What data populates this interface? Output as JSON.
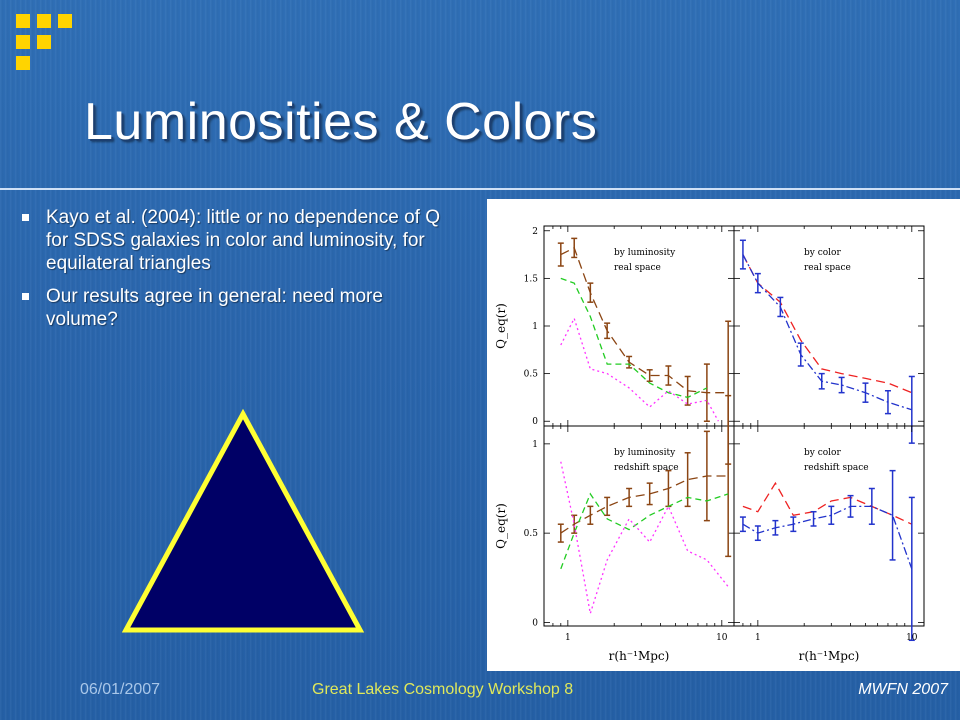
{
  "slide": {
    "title": "Luminosities & Colors",
    "bullets": [
      "Kayo et al. (2004): little or no dependence of Q for SDSS galaxies in color and luminosity, for equilateral triangles",
      "Our results agree in general: need more volume?"
    ],
    "footer": {
      "date": "06/01/2007",
      "event": "Great Lakes Cosmology Workshop 8",
      "author": "MWFN 2007"
    },
    "colors": {
      "background": "#2b68ae",
      "logo": "#ffd400",
      "triangle_fill": "#000066",
      "triangle_stroke": "#ffff33"
    }
  },
  "figure": {
    "ylabel": "Q_eq(r)",
    "xlabel": "r(h⁻¹Mpc)",
    "x_ticks": [
      "1",
      "10"
    ],
    "panels": [
      {
        "label1": "by luminosity",
        "label2": "real space",
        "y_ticks": [
          "0",
          "0.5",
          "1",
          "1.5",
          "2"
        ]
      },
      {
        "label1": "by color",
        "label2": "real space"
      },
      {
        "label1": "by luminosity",
        "label2": "redshift space",
        "y_ticks": [
          "0",
          "0.5",
          "1"
        ]
      },
      {
        "label1": "by color",
        "label2": "redshift space"
      }
    ]
  },
  "chart_data": [
    {
      "type": "line",
      "panel": "by luminosity / real space",
      "xscale": "log",
      "xlim": [
        0.7,
        12
      ],
      "ylim": [
        -0.05,
        2.05
      ],
      "series": [
        {
          "color": "#8b4513",
          "style": "long-dash with error bars",
          "x": [
            0.9,
            1.1,
            1.4,
            1.8,
            2.5,
            3.4,
            4.5,
            6.0,
            8.0,
            11.0
          ],
          "y": [
            1.75,
            1.82,
            1.35,
            0.95,
            0.62,
            0.48,
            0.48,
            0.32,
            0.3,
            0.3
          ],
          "err": [
            0.12,
            0.1,
            0.1,
            0.08,
            0.06,
            0.06,
            0.1,
            0.15,
            0.3,
            0.75
          ]
        },
        {
          "color": "#22cc22",
          "style": "dashed",
          "x": [
            0.9,
            1.1,
            1.4,
            1.8,
            2.5,
            3.4,
            4.5,
            6.0,
            8.0
          ],
          "y": [
            1.5,
            1.45,
            1.1,
            0.6,
            0.6,
            0.4,
            0.3,
            0.25,
            0.35
          ]
        },
        {
          "color": "#ff33ff",
          "style": "dotted",
          "x": [
            0.9,
            1.1,
            1.4,
            1.8,
            2.5,
            3.4,
            4.5,
            6.0,
            8.0,
            9.5
          ],
          "y": [
            0.8,
            1.08,
            0.55,
            0.5,
            0.35,
            0.15,
            0.32,
            0.18,
            0.22,
            0.0
          ]
        }
      ]
    },
    {
      "type": "line",
      "panel": "by color / real space",
      "xscale": "log",
      "xlim": [
        0.7,
        12
      ],
      "ylim": [
        -0.05,
        2.05
      ],
      "series": [
        {
          "color": "#ee2222",
          "style": "long-dash",
          "x": [
            0.8,
            1.0,
            1.4,
            1.9,
            2.6,
            3.5,
            5.0,
            7.0,
            10.0
          ],
          "y": [
            1.75,
            1.45,
            1.25,
            0.85,
            0.55,
            0.5,
            0.45,
            0.4,
            0.3
          ]
        },
        {
          "color": "#2233cc",
          "style": "dash-dot with error bars",
          "x": [
            0.8,
            1.0,
            1.4,
            1.9,
            2.6,
            3.5,
            5.0,
            7.0,
            10.0
          ],
          "y": [
            1.75,
            1.45,
            1.2,
            0.7,
            0.42,
            0.38,
            0.3,
            0.2,
            0.12
          ],
          "err": [
            0.15,
            0.1,
            0.1,
            0.12,
            0.08,
            0.08,
            0.1,
            0.12,
            0.35
          ]
        }
      ]
    },
    {
      "type": "line",
      "panel": "by luminosity / redshift space",
      "xscale": "log",
      "xlim": [
        0.7,
        12
      ],
      "ylim": [
        -0.02,
        1.1
      ],
      "series": [
        {
          "color": "#8b4513",
          "style": "long-dash with error bars",
          "x": [
            0.9,
            1.1,
            1.4,
            1.8,
            2.5,
            3.4,
            4.5,
            6.0,
            8.0,
            11.0
          ],
          "y": [
            0.5,
            0.55,
            0.6,
            0.65,
            0.7,
            0.72,
            0.75,
            0.8,
            0.82,
            0.82
          ],
          "err": [
            0.05,
            0.05,
            0.05,
            0.05,
            0.05,
            0.06,
            0.1,
            0.15,
            0.25,
            0.45
          ]
        },
        {
          "color": "#22cc22",
          "style": "dashed",
          "x": [
            0.9,
            1.1,
            1.4,
            1.8,
            2.5,
            3.4,
            4.5,
            6.0,
            8.0,
            11.0
          ],
          "y": [
            0.3,
            0.5,
            0.72,
            0.58,
            0.52,
            0.6,
            0.65,
            0.7,
            0.68,
            0.72
          ]
        },
        {
          "color": "#ff33ff",
          "style": "dotted",
          "x": [
            0.9,
            1.1,
            1.4,
            1.8,
            2.5,
            3.4,
            4.5,
            6.0,
            8.0,
            11.0
          ],
          "y": [
            0.9,
            0.55,
            0.05,
            0.35,
            0.58,
            0.45,
            0.65,
            0.4,
            0.35,
            0.2
          ]
        }
      ]
    },
    {
      "type": "line",
      "panel": "by color / redshift space",
      "xscale": "log",
      "xlim": [
        0.7,
        12
      ],
      "ylim": [
        -0.02,
        1.1
      ],
      "series": [
        {
          "color": "#ee2222",
          "style": "long-dash",
          "x": [
            0.8,
            1.0,
            1.3,
            1.7,
            2.3,
            3.0,
            4.0,
            5.5,
            7.5,
            10.0
          ],
          "y": [
            0.65,
            0.62,
            0.78,
            0.6,
            0.62,
            0.68,
            0.7,
            0.65,
            0.6,
            0.55
          ]
        },
        {
          "color": "#2233cc",
          "style": "dash-dot with error bars",
          "x": [
            0.8,
            1.0,
            1.3,
            1.7,
            2.3,
            3.0,
            4.0,
            5.5,
            7.5,
            10.0
          ],
          "y": [
            0.55,
            0.5,
            0.53,
            0.55,
            0.58,
            0.6,
            0.65,
            0.65,
            0.6,
            0.3
          ],
          "err": [
            0.04,
            0.04,
            0.04,
            0.04,
            0.04,
            0.05,
            0.06,
            0.1,
            0.25,
            0.4
          ]
        }
      ]
    }
  ]
}
